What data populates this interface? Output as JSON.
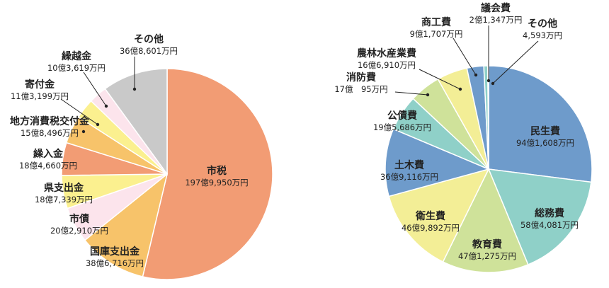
{
  "chart_data": [
    {
      "type": "pie",
      "title": "",
      "slices": [
        {
          "name": "市税",
          "value_label": "197億9,950万円",
          "value": 197.995,
          "color": "#F29C74"
        },
        {
          "name": "国庫支出金",
          "value_label": "38億6,716万円",
          "value": 38.6716,
          "color": "#F7C36A"
        },
        {
          "name": "市債",
          "value_label": "20億2,910万円",
          "value": 20.291,
          "color": "#FCE4EC"
        },
        {
          "name": "県支出金",
          "value_label": "18億7,339万円",
          "value": 18.7339,
          "color": "#FBF08F"
        },
        {
          "name": "繰入金",
          "value_label": "18億4,660万円",
          "value": 18.466,
          "color": "#F29C74"
        },
        {
          "name": "地方消費税交付金",
          "value_label": "15億8,496万円",
          "value": 15.8496,
          "color": "#F7C36A"
        },
        {
          "name": "寄付金",
          "value_label": "11億3,199万円",
          "value": 11.3199,
          "color": "#FBF08F"
        },
        {
          "name": "繰越金",
          "value_label": "10億3,619万円",
          "value": 10.3619,
          "color": "#FCE4EC"
        },
        {
          "name": "その他",
          "value_label": "36億8,601万円",
          "value": 36.8601,
          "color": "#C9C9C9"
        }
      ]
    },
    {
      "type": "pie",
      "title": "",
      "slices": [
        {
          "name": "民生費",
          "value_label": "94億1,608万円",
          "value": 94.1608,
          "color": "#6E9BCB"
        },
        {
          "name": "総務費",
          "value_label": "58億4,081万円",
          "value": 58.4081,
          "color": "#8FD0C8"
        },
        {
          "name": "教育費",
          "value_label": "47億1,275万円",
          "value": 47.1275,
          "color": "#CFE29A"
        },
        {
          "name": "衛生費",
          "value_label": "46億9,892万円",
          "value": 46.9892,
          "color": "#F3EE96"
        },
        {
          "name": "土木費",
          "value_label": "36億9,116万円",
          "value": 36.9116,
          "color": "#6E9BCB"
        },
        {
          "name": "公債費",
          "value_label": "19億5,686万円",
          "value": 19.5686,
          "color": "#8FD0C8"
        },
        {
          "name": "消防費",
          "value_label": "17億　95万円",
          "value": 17.0095,
          "color": "#CFE29A"
        },
        {
          "name": "農林水産業費",
          "value_label": "16億6,910万円",
          "value": 16.691,
          "color": "#F3EE96"
        },
        {
          "name": "商工費",
          "value_label": "9億1,707万円",
          "value": 9.1707,
          "color": "#6E9BCB"
        },
        {
          "name": "議会費",
          "value_label": "2億1,347万円",
          "value": 2.1347,
          "color": "#8FD0C8"
        },
        {
          "name": "その他",
          "value_label": "4,593万円",
          "value": 0.4593,
          "color": "#C9C9C9"
        }
      ]
    }
  ]
}
